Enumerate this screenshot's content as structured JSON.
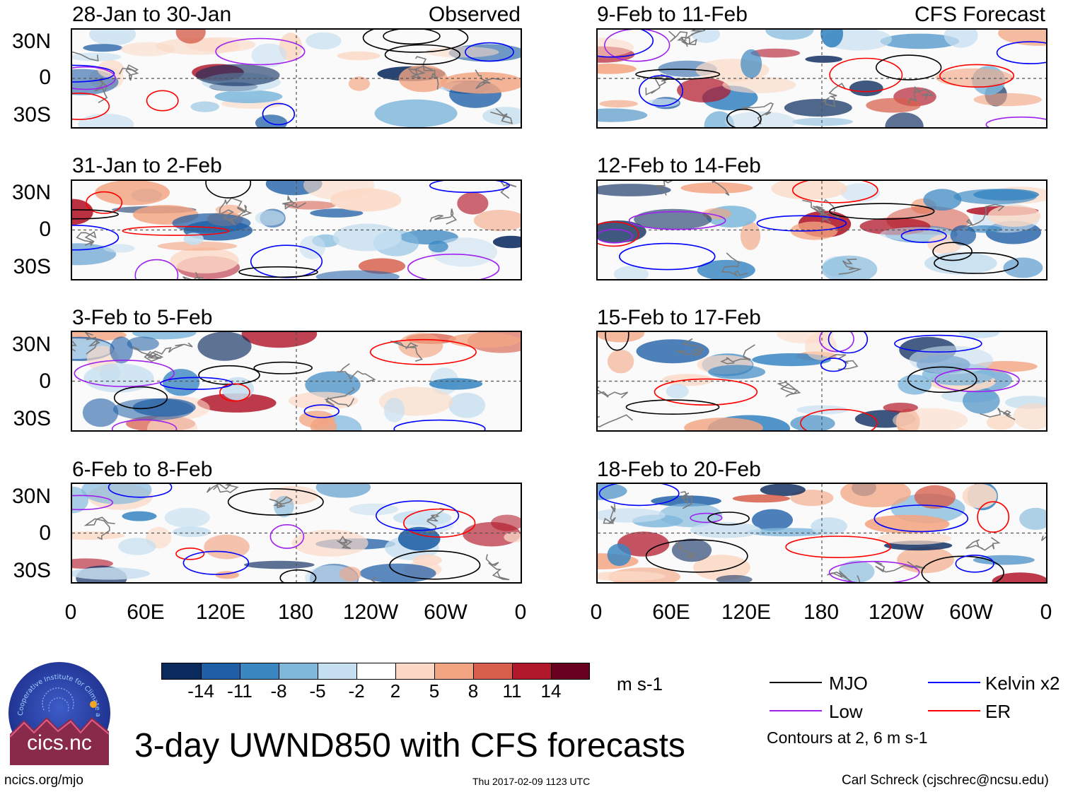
{
  "panels": [
    {
      "title": "28-Jan to 30-Jan",
      "label": "Observed"
    },
    {
      "title": "31-Jan to 2-Feb",
      "label": ""
    },
    {
      "title": "3-Feb to 5-Feb",
      "label": ""
    },
    {
      "title": "6-Feb to 8-Feb",
      "label": ""
    },
    {
      "title": "9-Feb to 11-Feb",
      "label": "CFS Forecast"
    },
    {
      "title": "12-Feb to 14-Feb",
      "label": ""
    },
    {
      "title": "15-Feb to 17-Feb",
      "label": ""
    },
    {
      "title": "18-Feb to 20-Feb",
      "label": ""
    }
  ],
  "lat_ticks": [
    "30N",
    "0",
    "30S"
  ],
  "lon_ticks": [
    "0",
    "60E",
    "120E",
    "180",
    "120W",
    "60W",
    "0"
  ],
  "colorbar": {
    "colors": [
      "#0a2a5e",
      "#1f5fa6",
      "#3a87c2",
      "#80b8dc",
      "#c6dff0",
      "#ffffff",
      "#fbd9c6",
      "#f3a582",
      "#d75f4c",
      "#b2182b",
      "#67001f"
    ],
    "ticks": [
      "-14",
      "-11",
      "-8",
      "-5",
      "-2",
      "2",
      "5",
      "8",
      "11",
      "14"
    ],
    "units": "m s-1"
  },
  "legend": {
    "items": [
      {
        "name": "MJO",
        "color": "#000000"
      },
      {
        "name": "Kelvin x2",
        "color": "#0000ff"
      },
      {
        "name": "Low",
        "color": "#a020f0"
      },
      {
        "name": "ER",
        "color": "#ff0000"
      }
    ],
    "note": "Contours at 2, 6 m s-1"
  },
  "main_title": "3-day UWND850 with CFS forecasts",
  "logo_text": "cics.nc",
  "logo_arc_text": "Cooperative Institute for Climate and Satellites",
  "url": "ncics.org/mjo",
  "timestamp": "Thu 2017-02-09 1123 UTC",
  "author": "Carl Schreck (cjschrec@ncsu.edu)",
  "chart_data": {
    "type": "heatmap",
    "title": "3-day UWND850 with CFS forecasts",
    "variable": "850-hPa zonal wind anomaly",
    "units": "m s-1",
    "x_ticks": [
      "0",
      "60E",
      "120E",
      "180",
      "120W",
      "60W",
      "0"
    ],
    "y_ticks": [
      "30N",
      "0",
      "30S"
    ],
    "xlim": [
      0,
      360
    ],
    "ylim": [
      -40,
      40
    ],
    "contour_levels": [
      -14,
      -11,
      -8,
      -5,
      -2,
      2,
      5,
      8,
      11,
      14
    ],
    "overlay_contours": [
      "MJO",
      "Kelvin x2",
      "Low",
      "ER"
    ],
    "overlay_contour_values": [
      2,
      6
    ],
    "panels": [
      {
        "period": "28-Jan to 30-Jan",
        "source": "Observed"
      },
      {
        "period": "31-Jan to 2-Feb",
        "source": "Observed"
      },
      {
        "period": "3-Feb to 5-Feb",
        "source": "Observed"
      },
      {
        "period": "6-Feb to 8-Feb",
        "source": "Observed"
      },
      {
        "period": "9-Feb to 11-Feb",
        "source": "CFS Forecast"
      },
      {
        "period": "12-Feb to 14-Feb",
        "source": "CFS Forecast"
      },
      {
        "period": "15-Feb to 17-Feb",
        "source": "CFS Forecast"
      },
      {
        "period": "18-Feb to 20-Feb",
        "source": "CFS Forecast"
      }
    ]
  }
}
